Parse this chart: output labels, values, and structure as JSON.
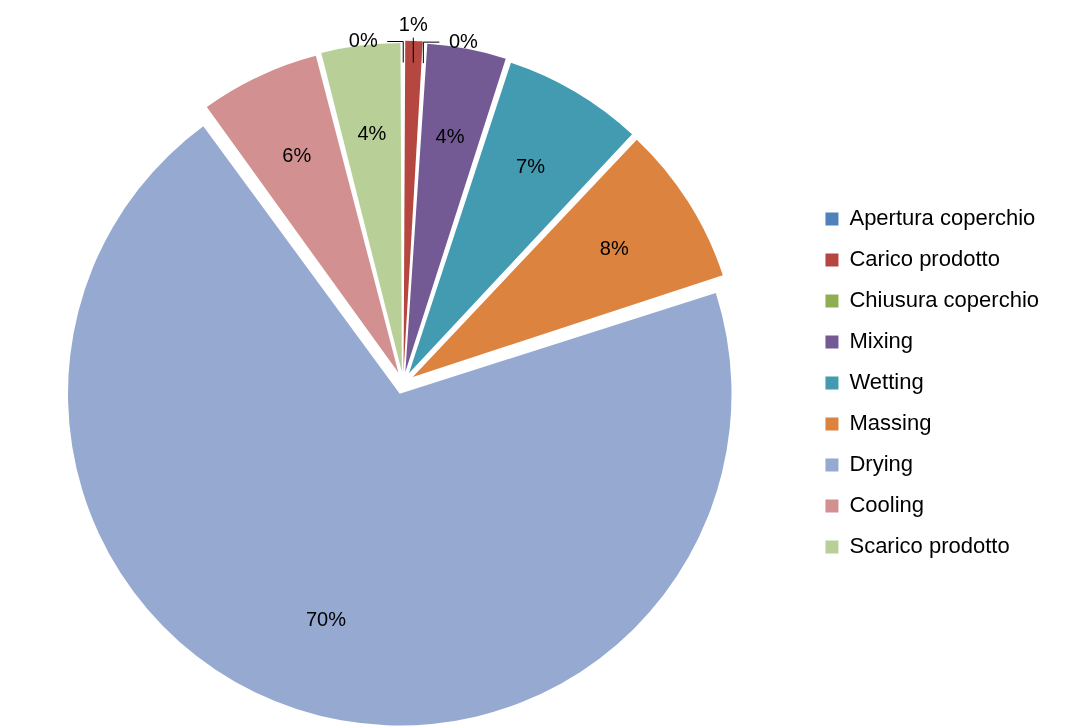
{
  "chart_data": {
    "type": "pie",
    "categories": [
      "Apertura coperchio",
      "Carico prodotto",
      "Chiusura coperchio",
      "Mixing",
      "Wetting",
      "Massing",
      "Drying",
      "Cooling",
      "Scarico prodotto"
    ],
    "values": [
      0,
      1,
      0,
      4,
      7,
      8,
      70,
      6,
      4
    ],
    "colors": [
      "#4f81bd",
      "#b54640",
      "#8fad52",
      "#735a94",
      "#439bb2",
      "#dc843f",
      "#95a9d1",
      "#d29190",
      "#b8d098"
    ],
    "value_labels": [
      "0%",
      "1%",
      "0%",
      "4%",
      "7%",
      "8%",
      "70%",
      "6%",
      "4%"
    ],
    "legend": "right"
  }
}
